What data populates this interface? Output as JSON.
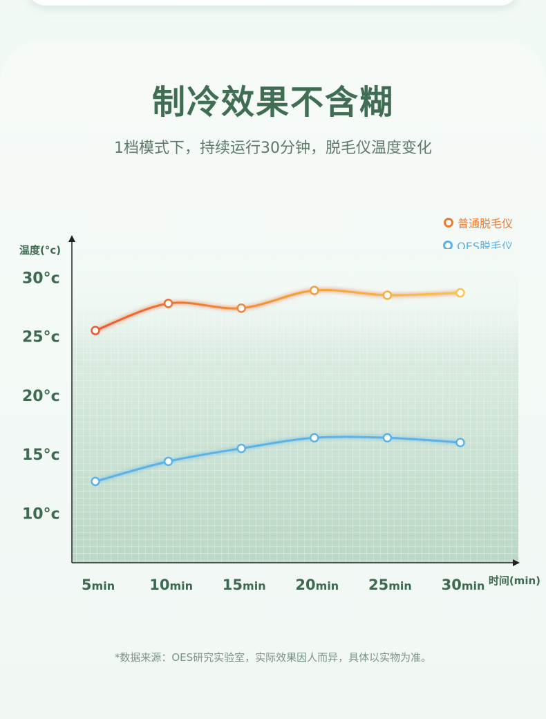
{
  "header": {
    "title": "制冷效果不含糊",
    "subtitle": "1档模式下，持续运行30分钟，脱毛仪温度变化"
  },
  "footnote": "*数据来源：OES研究实验室，实际效果因人而异，具体以实物为准。",
  "colors": {
    "title": "#3f6e52",
    "axis_text": "#3d6a50",
    "series_normal_start": "#ec5a2a",
    "series_normal_end": "#f7c64a",
    "series_oes": "#5ab2e6"
  },
  "chart_data": {
    "type": "line",
    "ylabel": "温度(°c)",
    "xlabel": "时间(min)",
    "categories": [
      "5min",
      "10min",
      "15min",
      "20min",
      "25min",
      "30min"
    ],
    "x_ticks": [
      {
        "num": "5",
        "unit": "min"
      },
      {
        "num": "10",
        "unit": "min"
      },
      {
        "num": "15",
        "unit": "min"
      },
      {
        "num": "20",
        "unit": "min"
      },
      {
        "num": "25",
        "unit": "min"
      },
      {
        "num": "30",
        "unit": "min"
      }
    ],
    "y_ticks": [
      {
        "value": 30,
        "label": "30°c"
      },
      {
        "value": 25,
        "label": "25°c"
      },
      {
        "value": 20,
        "label": "20°c"
      },
      {
        "value": 15,
        "label": "15°c"
      },
      {
        "value": 10,
        "label": "10°c"
      }
    ],
    "ylim": [
      5.8,
      33.6
    ],
    "series": [
      {
        "name": "普通脱毛仪",
        "values": [
          25.5,
          27.8,
          27.4,
          28.9,
          28.5,
          28.7
        ]
      },
      {
        "name": "OES脱毛仪",
        "values": [
          12.7,
          14.4,
          15.5,
          16.4,
          16.4,
          16.0
        ]
      }
    ],
    "legend": "top-right",
    "grid": true
  }
}
